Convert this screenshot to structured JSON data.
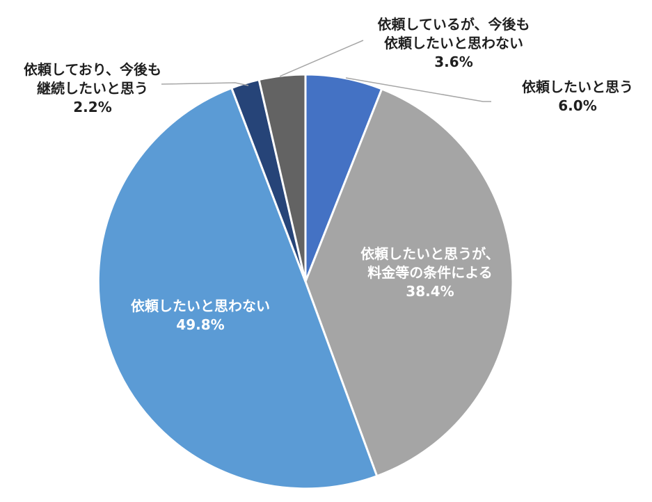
{
  "chart_data": {
    "type": "pie",
    "start_angle_deg": 0,
    "direction": "clockwise",
    "slices": [
      {
        "label_lines": [
          "依頼したいと思う"
        ],
        "value": 6.0,
        "value_text": "6.0%",
        "color": "#4472c4",
        "label_style": "outside"
      },
      {
        "label_lines": [
          "依頼したいと思うが、",
          "料金等の条件による"
        ],
        "value": 38.4,
        "value_text": "38.4%",
        "color": "#a5a5a5",
        "label_style": "inside"
      },
      {
        "label_lines": [
          "依頼したいと思わない"
        ],
        "value": 49.8,
        "value_text": "49.8%",
        "color": "#5b9bd5",
        "label_style": "inside"
      },
      {
        "label_lines": [
          "依頼しており、今後も",
          "継続したいと思う"
        ],
        "value": 2.2,
        "value_text": "2.2%",
        "color": "#264478",
        "label_style": "outside"
      },
      {
        "label_lines": [
          "依頼しているが、今後も",
          "依頼したいと思わない"
        ],
        "value": 3.6,
        "value_text": "3.6%",
        "color": "#636363",
        "label_style": "outside"
      }
    ]
  }
}
